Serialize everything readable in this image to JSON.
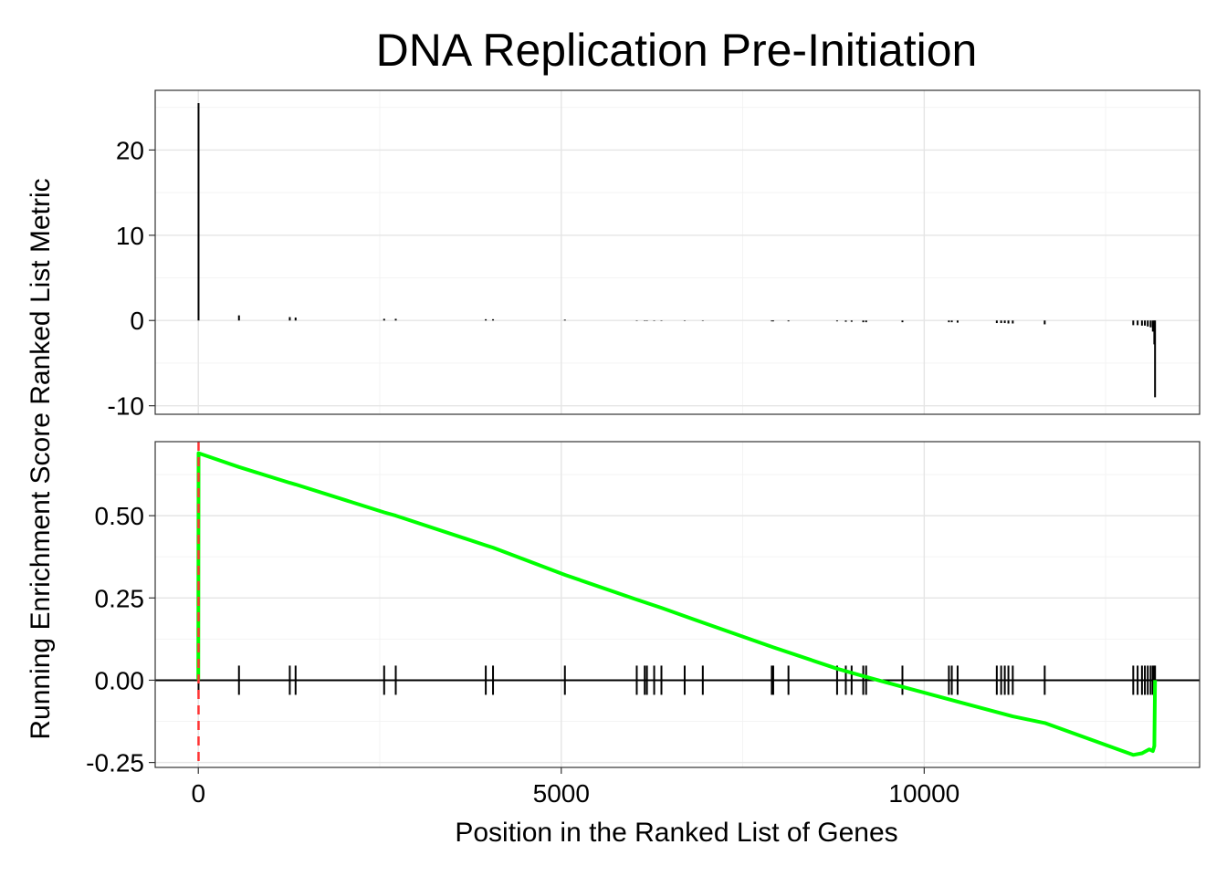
{
  "chart_data": {
    "type": "line",
    "title": "DNA Replication Pre-Initiation",
    "xlabel": "Position in the Ranked List of Genes",
    "ylabel": "Running Enrichment Score Ranked List Metric",
    "xlim": [
      0,
      13200
    ],
    "x_ticks": [
      0,
      5000,
      10000
    ],
    "x_tick_labels": [
      "0",
      "5000",
      "10000"
    ],
    "grid": true,
    "colors": {
      "running_score": "#00ff00",
      "hits": "#000000",
      "metric": "#000000",
      "peak_line": "#ff3333",
      "zero_line": "#000000"
    },
    "panels": [
      {
        "name": "Ranked List Metric",
        "type": "bar",
        "ylim": [
          -11,
          27
        ],
        "y_ticks": [
          -10,
          0,
          10,
          20
        ],
        "y_tick_labels": [
          "-10",
          "0",
          "10",
          "20"
        ],
        "bars": {
          "x": [
            3,
            560,
            1260,
            1340,
            2560,
            2720,
            3960,
            4060,
            5050,
            6040,
            6150,
            6180,
            6280,
            6380,
            6700,
            6950,
            7900,
            7920,
            8130,
            8800,
            8920,
            9000,
            9160,
            9200,
            9700,
            10340,
            10380,
            10460,
            11000,
            11060,
            11110,
            11160,
            11220,
            11660,
            12880,
            12940,
            13000,
            13040,
            13080,
            13120,
            13150,
            13170,
            13180
          ],
          "values": [
            25.5,
            0.6,
            0.4,
            0.35,
            0.2,
            0.2,
            0.15,
            0.15,
            0.1,
            -0.05,
            -0.05,
            -0.05,
            -0.05,
            -0.05,
            -0.05,
            -0.05,
            -0.1,
            -0.1,
            -0.1,
            -0.1,
            -0.15,
            -0.15,
            -0.2,
            -0.2,
            -0.2,
            -0.2,
            -0.2,
            -0.25,
            -0.3,
            -0.3,
            -0.3,
            -0.35,
            -0.35,
            -0.45,
            -0.55,
            -0.55,
            -0.6,
            -0.6,
            -0.7,
            -0.8,
            -1.3,
            -2.8,
            -9.0
          ]
        }
      },
      {
        "name": "Running Enrichment Score",
        "type": "line",
        "ylim": [
          -0.265,
          0.725
        ],
        "y_ticks": [
          -0.25,
          0,
          0.25,
          0.5
        ],
        "y_tick_labels": [
          "-0.25",
          "0.00",
          "0.25",
          "0.50"
        ],
        "series": [
          {
            "x": [
              0,
              3,
              560,
              1260,
              1340,
              2560,
              2720,
              3960,
              4060,
              5050,
              6040,
              6380,
              6950,
              7920,
              8800,
              9200,
              9700,
              10460,
              11220,
              11660,
              12880,
              13000,
              13100,
              13150,
              13170,
              13180
            ],
            "values": [
              0.0,
              0.69,
              0.648,
              0.6,
              0.595,
              0.51,
              0.5,
              0.41,
              0.403,
              0.32,
              0.245,
              0.22,
              0.175,
              0.1,
              0.035,
              0.01,
              -0.02,
              -0.065,
              -0.11,
              -0.13,
              -0.227,
              -0.222,
              -0.21,
              -0.215,
              -0.2,
              0.0
            ]
          }
        ],
        "hits_x": [
          3,
          560,
          1260,
          1340,
          2560,
          2720,
          3960,
          4060,
          5050,
          6040,
          6150,
          6180,
          6280,
          6380,
          6700,
          6950,
          7900,
          7920,
          8130,
          8800,
          8920,
          9000,
          9160,
          9200,
          9700,
          10340,
          10380,
          10460,
          11000,
          11060,
          11110,
          11160,
          11220,
          11660,
          12880,
          12940,
          13000,
          13040,
          13080,
          13120,
          13150,
          13170,
          13180
        ],
        "peak_x": 3
      }
    ]
  }
}
